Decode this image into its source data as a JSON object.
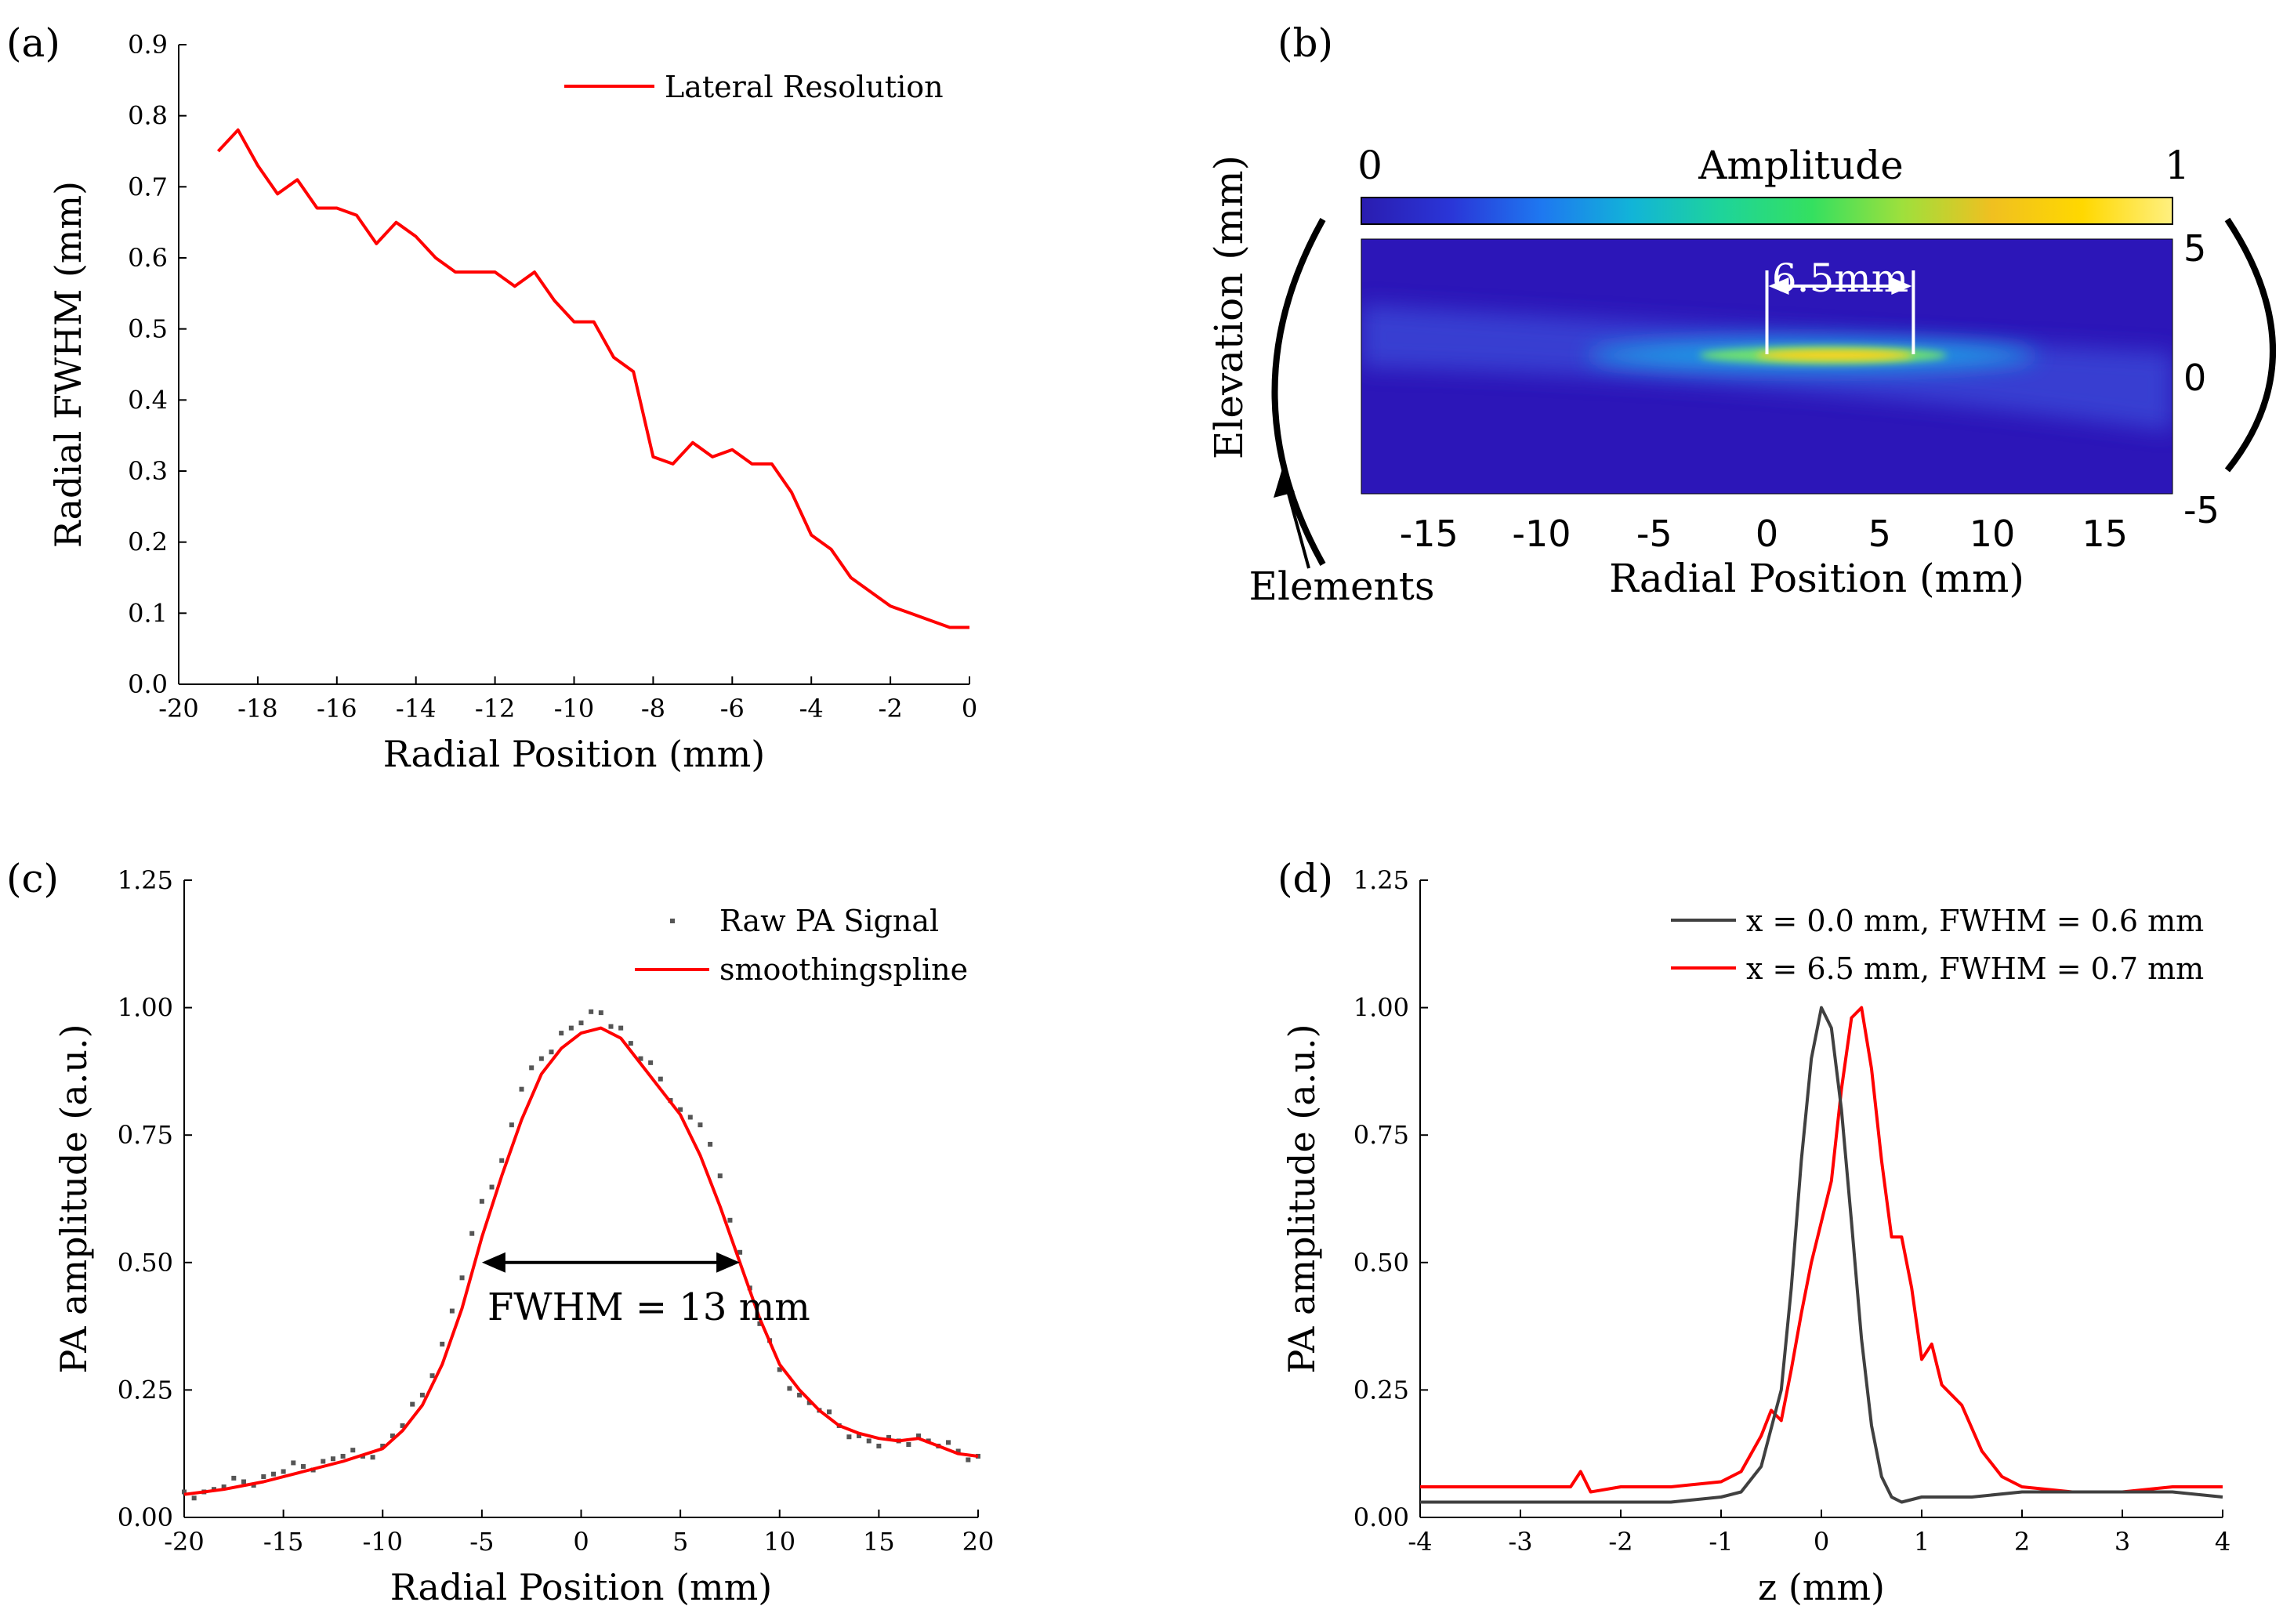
{
  "chart_data": [
    {
      "id": "a",
      "panel_label": "(a)",
      "type": "line",
      "xlabel": "Radial Position (mm)",
      "ylabel": "Radial FWHM (mm)",
      "xlim": [
        -20,
        0
      ],
      "ylim": [
        0.0,
        0.9
      ],
      "x_ticks": [
        -20,
        -18,
        -16,
        -14,
        -12,
        -10,
        -8,
        -6,
        -4,
        -2,
        0
      ],
      "y_ticks": [
        0.0,
        0.1,
        0.2,
        0.3,
        0.4,
        0.5,
        0.6,
        0.7,
        0.8,
        0.9
      ],
      "x_tick_labels": [
        "-20",
        "-18",
        "-16",
        "-14",
        "-12",
        "-10",
        "-8",
        "-6",
        "-4",
        "-2",
        "0"
      ],
      "y_tick_labels": [
        "0.0",
        "0.1",
        "0.2",
        "0.3",
        "0.4",
        "0.5",
        "0.6",
        "0.7",
        "0.8",
        "0.9"
      ],
      "legend_position": "top-right",
      "series": [
        {
          "name": "Lateral Resolution",
          "color": "#ff0000",
          "x": [
            -19,
            -18.5,
            -18,
            -17.5,
            -17,
            -16.5,
            -16,
            -15.5,
            -15,
            -14.5,
            -14,
            -13.5,
            -13,
            -12.5,
            -12,
            -11.5,
            -11,
            -10.5,
            -10,
            -9.5,
            -9,
            -8.5,
            -8,
            -7.5,
            -7,
            -6.5,
            -6,
            -5.5,
            -5,
            -4.5,
            -4,
            -3.5,
            -3,
            -2.5,
            -2,
            -1.5,
            -1,
            -0.5,
            0
          ],
          "y": [
            0.75,
            0.78,
            0.73,
            0.69,
            0.71,
            0.67,
            0.67,
            0.66,
            0.62,
            0.65,
            0.63,
            0.6,
            0.58,
            0.58,
            0.58,
            0.56,
            0.58,
            0.54,
            0.51,
            0.51,
            0.46,
            0.44,
            0.32,
            0.31,
            0.34,
            0.32,
            0.33,
            0.31,
            0.31,
            0.27,
            0.21,
            0.19,
            0.15,
            0.13,
            0.11,
            0.1,
            0.09,
            0.08,
            0.08
          ]
        }
      ]
    },
    {
      "id": "b",
      "panel_label": "(b)",
      "type": "heatmap",
      "xlabel": "Radial Position (mm)",
      "ylabel": "Elevation (mm)",
      "xlim": [
        -18,
        18
      ],
      "ylim": [
        -5,
        5
      ],
      "x_ticks": [
        -15,
        -10,
        -5,
        0,
        5,
        10,
        15
      ],
      "x_tick_labels": [
        "-15",
        "-10",
        "-5",
        "0",
        "5",
        "10",
        "15"
      ],
      "y_ticks": [
        5,
        0,
        -5
      ],
      "y_tick_labels": [
        "5",
        "0",
        "-5"
      ],
      "colorbar": {
        "label": "Amplitude",
        "min_label": "0",
        "max_label": "1",
        "colors": [
          "#2a1cb0",
          "#2a36d8",
          "#1e78f0",
          "#12b4d8",
          "#1ed49a",
          "#34e060",
          "#9ee03c",
          "#f0c020",
          "#ffd800",
          "#fff080"
        ]
      },
      "colors": {
        "background": "#2c16b8",
        "beam_mid": "#1aa8e8",
        "beam_core": "#ffd21e"
      },
      "beam": {
        "x_start": -18,
        "x_end": 18,
        "elevation_start": 1.2,
        "elevation_mid": 0.5,
        "elevation_end": -1.0,
        "peak_x": 3
      },
      "annotation": {
        "text": "6.5mm",
        "x_start": 0,
        "x_end": 6.5
      },
      "elements_label": "Elements"
    },
    {
      "id": "c",
      "panel_label": "(c)",
      "type": "scatter",
      "xlabel": "Radial Position (mm)",
      "ylabel": "PA amplitude (a.u.)",
      "xlim": [
        -20,
        20
      ],
      "ylim": [
        0.0,
        1.25
      ],
      "x_ticks": [
        -20,
        -15,
        -10,
        -5,
        0,
        5,
        10,
        15,
        20
      ],
      "x_tick_labels": [
        "-20",
        "-15",
        "-10",
        "-5",
        "0",
        "5",
        "10",
        "15",
        "20"
      ],
      "y_ticks": [
        0.0,
        0.25,
        0.5,
        0.75,
        1.0,
        1.25
      ],
      "y_tick_labels": [
        "0.00",
        "0.25",
        "0.50",
        "0.75",
        "1.00",
        "1.25"
      ],
      "legend_position": "top-right",
      "series": [
        {
          "name": "Raw PA Signal",
          "color": "#555555",
          "kind": "points",
          "x": [
            -20,
            -19,
            -18,
            -17,
            -16,
            -15,
            -14,
            -13,
            -12,
            -11,
            -10,
            -9,
            -8,
            -7,
            -6,
            -5,
            -4,
            -3,
            -2,
            -1,
            0,
            1,
            2,
            3,
            4,
            5,
            6,
            7,
            8,
            9,
            10,
            11,
            12,
            13,
            14,
            15,
            16,
            17,
            18,
            19,
            20
          ],
          "y": [
            0.05,
            0.05,
            0.06,
            0.07,
            0.08,
            0.09,
            0.1,
            0.11,
            0.12,
            0.12,
            0.14,
            0.18,
            0.24,
            0.34,
            0.47,
            0.62,
            0.7,
            0.84,
            0.9,
            0.95,
            0.97,
            0.99,
            0.96,
            0.9,
            0.86,
            0.8,
            0.77,
            0.67,
            0.52,
            0.38,
            0.29,
            0.24,
            0.21,
            0.18,
            0.16,
            0.14,
            0.15,
            0.16,
            0.14,
            0.13,
            0.12
          ]
        },
        {
          "name": "smoothingspline",
          "color": "#ff0000",
          "kind": "line",
          "x": [
            -20,
            -18,
            -16,
            -14,
            -12,
            -10,
            -9,
            -8,
            -7,
            -6,
            -5,
            -4,
            -3,
            -2,
            -1,
            0,
            1,
            2,
            3,
            4,
            5,
            6,
            7,
            8,
            9,
            10,
            11,
            12,
            13,
            14,
            15,
            16,
            17,
            18,
            19,
            20
          ],
          "y": [
            0.045,
            0.055,
            0.07,
            0.09,
            0.11,
            0.135,
            0.17,
            0.22,
            0.3,
            0.41,
            0.55,
            0.67,
            0.78,
            0.87,
            0.92,
            0.95,
            0.96,
            0.94,
            0.89,
            0.84,
            0.79,
            0.71,
            0.61,
            0.5,
            0.39,
            0.3,
            0.25,
            0.21,
            0.18,
            0.165,
            0.155,
            0.15,
            0.155,
            0.14,
            0.125,
            0.12
          ]
        }
      ],
      "annotation": {
        "text": "FWHM = 13 mm",
        "x_start": -5,
        "x_end": 8,
        "y": 0.5
      }
    },
    {
      "id": "d",
      "panel_label": "(d)",
      "type": "line",
      "xlabel": "z (mm)",
      "ylabel": "PA amplitude (a.u.)",
      "xlim": [
        -4,
        4
      ],
      "ylim": [
        0.0,
        1.25
      ],
      "x_ticks": [
        -4,
        -3,
        -2,
        -1,
        0,
        1,
        2,
        3,
        4
      ],
      "x_tick_labels": [
        "-4",
        "-3",
        "-2",
        "-1",
        "0",
        "1",
        "2",
        "3",
        "4"
      ],
      "y_ticks": [
        0.0,
        0.25,
        0.5,
        0.75,
        1.0,
        1.25
      ],
      "y_tick_labels": [
        "0.00",
        "0.25",
        "0.50",
        "0.75",
        "1.00",
        "1.25"
      ],
      "legend_position": "top-right",
      "series": [
        {
          "name": "x = 0.0 mm, FWHM = 0.6 mm",
          "color": "#404040",
          "x": [
            -4,
            -3.5,
            -3,
            -2.5,
            -2,
            -1.5,
            -1,
            -0.8,
            -0.6,
            -0.4,
            -0.3,
            -0.2,
            -0.1,
            0,
            0.1,
            0.2,
            0.3,
            0.4,
            0.5,
            0.6,
            0.7,
            0.8,
            1,
            1.5,
            2,
            2.5,
            3,
            3.5,
            4
          ],
          "y": [
            0.03,
            0.03,
            0.03,
            0.03,
            0.03,
            0.03,
            0.04,
            0.05,
            0.1,
            0.25,
            0.45,
            0.7,
            0.9,
            1.0,
            0.96,
            0.8,
            0.58,
            0.35,
            0.18,
            0.08,
            0.04,
            0.03,
            0.04,
            0.04,
            0.05,
            0.05,
            0.05,
            0.05,
            0.04
          ]
        },
        {
          "name": "x = 6.5 mm, FWHM = 0.7 mm",
          "color": "#ff0000",
          "x": [
            -4,
            -3.5,
            -3,
            -2.5,
            -2.4,
            -2.3,
            -2,
            -1.5,
            -1,
            -0.8,
            -0.6,
            -0.5,
            -0.4,
            -0.3,
            -0.2,
            -0.1,
            0,
            0.1,
            0.2,
            0.3,
            0.4,
            0.5,
            0.6,
            0.7,
            0.8,
            0.9,
            1,
            1.1,
            1.2,
            1.4,
            1.6,
            1.8,
            2,
            2.5,
            3,
            3.5,
            4
          ],
          "y": [
            0.06,
            0.06,
            0.06,
            0.06,
            0.09,
            0.05,
            0.06,
            0.06,
            0.07,
            0.09,
            0.16,
            0.21,
            0.19,
            0.29,
            0.4,
            0.5,
            0.58,
            0.66,
            0.84,
            0.98,
            1.0,
            0.88,
            0.7,
            0.55,
            0.55,
            0.45,
            0.31,
            0.34,
            0.26,
            0.22,
            0.13,
            0.08,
            0.06,
            0.05,
            0.05,
            0.06,
            0.06
          ]
        }
      ]
    }
  ]
}
